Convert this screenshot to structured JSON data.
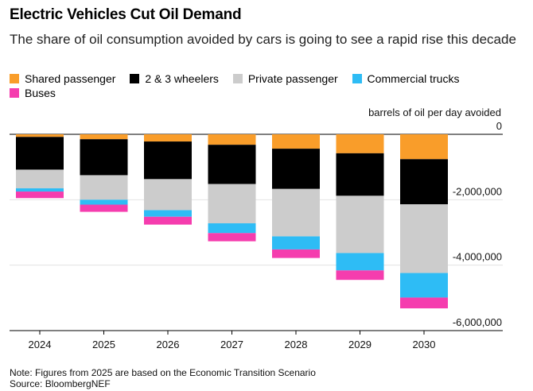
{
  "header": {
    "title": "Electric Vehicles Cut Oil Demand",
    "subtitle": "The share of oil consumption avoided by cars is going to see a rapid rise this decade"
  },
  "footer": {
    "note": "Note: Figures from 2025 are based on the Economic Transition Scenario",
    "source": "Source: BloombergNEF"
  },
  "chart_data": {
    "type": "bar",
    "stacked": true,
    "title": "Electric Vehicles Cut Oil Demand",
    "subtitle": "The share of oil consumption avoided by cars is going to see a rapid rise this decade",
    "ylabel": "barrels of oil per day avoided",
    "xlabel": "",
    "ylim": [
      -6000000,
      0
    ],
    "yticks": [
      0,
      -2000000,
      -4000000,
      -6000000
    ],
    "ytick_labels": [
      "0",
      "-2,000,000",
      "-4,000,000",
      "-6,000,000"
    ],
    "categories": [
      "2024",
      "2025",
      "2026",
      "2027",
      "2028",
      "2029",
      "2030"
    ],
    "series": [
      {
        "name": "Shared passenger",
        "color": "#F99D2A",
        "values": [
          -80000,
          -150000,
          -220000,
          -320000,
          -440000,
          -580000,
          -760000
        ]
      },
      {
        "name": "2 & 3 wheelers",
        "color": "#000000",
        "values": [
          -1000000,
          -1100000,
          -1150000,
          -1200000,
          -1230000,
          -1300000,
          -1380000
        ]
      },
      {
        "name": "Private passenger",
        "color": "#CCCCCC",
        "values": [
          -570000,
          -750000,
          -950000,
          -1200000,
          -1450000,
          -1750000,
          -2100000
        ]
      },
      {
        "name": "Commercial trucks",
        "color": "#2EBCF5",
        "values": [
          -100000,
          -150000,
          -200000,
          -300000,
          -400000,
          -530000,
          -750000
        ]
      },
      {
        "name": "Buses",
        "color": "#F53DAE",
        "values": [
          -200000,
          -220000,
          -240000,
          -250000,
          -260000,
          -290000,
          -330000
        ]
      }
    ],
    "legend_position": "top"
  }
}
